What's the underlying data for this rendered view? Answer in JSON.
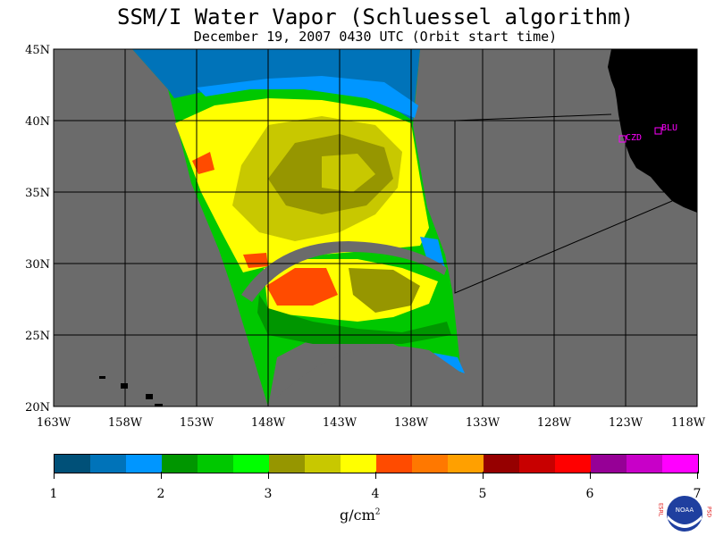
{
  "title": "SSM/I Water Vapor (Schluessel algorithm)",
  "subtitle": "December 19, 2007  0430 UTC  (Orbit start time)",
  "map": {
    "lat_labels": [
      "45N",
      "40N",
      "35N",
      "30N",
      "25N",
      "20N"
    ],
    "lon_labels": [
      "163W",
      "158W",
      "153W",
      "148W",
      "143W",
      "138W",
      "133W",
      "128W",
      "123W",
      "118W"
    ],
    "stations": [
      {
        "id": "BLU",
        "label": "BLU"
      },
      {
        "id": "CZD",
        "label": "CZD"
      }
    ],
    "colors": {
      "background": "#6b6b6b",
      "land": "#000000",
      "station": "#ff00ff"
    }
  },
  "colorbar": {
    "ticks": [
      "1",
      "2",
      "3",
      "4",
      "5",
      "6",
      "7"
    ],
    "unit_main": "g/cm",
    "unit_sup": "2",
    "colors": [
      "#005078",
      "#0073b9",
      "#0096ff",
      "#009600",
      "#00c800",
      "#00ff00",
      "#969600",
      "#c8c800",
      "#ffff00",
      "#ff4b00",
      "#ff7800",
      "#ffa000",
      "#960000",
      "#c80000",
      "#ff0000",
      "#960096",
      "#c800c8",
      "#ff00ff"
    ]
  },
  "logo": {
    "text": "NOAA",
    "left_letters": "ESRL",
    "right_letters": "PSD"
  }
}
